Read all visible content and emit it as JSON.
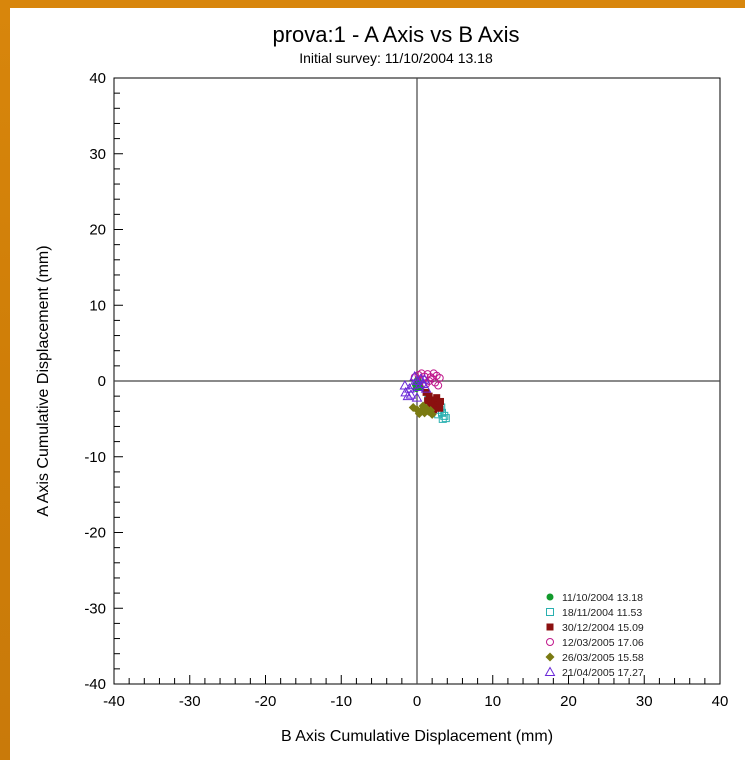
{
  "chart_data": {
    "type": "scatter",
    "title": "prova:1 - A Axis vs B Axis",
    "subtitle": "Initial survey: 11/10/2004 13.18",
    "xlabel": "B Axis Cumulative Displacement (mm)",
    "ylabel": "A Axis Cumulative Displacement (mm)",
    "xlim": [
      -40,
      40
    ],
    "ylim": [
      -40,
      40
    ],
    "xticks": [
      "-40",
      "-30",
      "-20",
      "-10",
      "0",
      "10",
      "20",
      "30",
      "40"
    ],
    "yticks": [
      "40",
      "30",
      "20",
      "10",
      "0",
      "-10",
      "-20",
      "-30",
      "-40"
    ],
    "grid": false,
    "zero_lines": true,
    "legend_position": "bottom-right",
    "series": [
      {
        "name": "11/10/2004 13.18",
        "marker": "circle-filled",
        "color": "#119a2c",
        "x": [
          0,
          0.3,
          -0.2,
          0.1,
          0.4,
          -0.1
        ],
        "y": [
          0,
          -0.3,
          -0.5,
          0.2,
          -0.8,
          -1.0
        ]
      },
      {
        "name": "18/11/2004 11.53",
        "marker": "square-open",
        "color": "#2ab0b0",
        "x": [
          1.5,
          2.0,
          2.5,
          3.0,
          3.3,
          3.6,
          2.8,
          3.2,
          2.2,
          3.8,
          1.8,
          3.4
        ],
        "y": [
          -2.5,
          -3.0,
          -3.5,
          -3.8,
          -4.2,
          -4.6,
          -4.4,
          -3.5,
          -2.8,
          -4.9,
          -3.2,
          -5.0
        ]
      },
      {
        "name": "30/12/2004 15.09",
        "marker": "square-filled",
        "color": "#8b1010",
        "x": [
          1.2,
          1.6,
          2.0,
          2.4,
          2.8,
          3.0,
          2.2,
          1.8,
          2.6,
          1.4,
          2.0,
          3.1
        ],
        "y": [
          -1.5,
          -2.0,
          -2.5,
          -2.8,
          -3.2,
          -3.6,
          -3.8,
          -3.0,
          -2.2,
          -2.6,
          -3.4,
          -2.7
        ]
      },
      {
        "name": "12/03/2005 17.06",
        "marker": "circle-open",
        "color": "#c0188c",
        "x": [
          0.2,
          0.6,
          1.0,
          1.4,
          1.8,
          2.2,
          2.6,
          3.0,
          0.8,
          1.6,
          2.4,
          1.2,
          2.0,
          -0.3,
          2.8
        ],
        "y": [
          0.8,
          1.0,
          0.6,
          0.9,
          0.5,
          1.0,
          0.7,
          0.4,
          0.2,
          0.0,
          -0.2,
          -0.4,
          0.3,
          0.5,
          -0.6
        ]
      },
      {
        "name": "26/03/2005 15.58",
        "marker": "diamond-filled",
        "color": "#7a7a12",
        "x": [
          -0.5,
          0.0,
          0.5,
          1.0,
          1.5,
          2.0,
          1.2,
          0.3,
          0.8,
          1.8
        ],
        "y": [
          -3.5,
          -3.8,
          -4.0,
          -4.2,
          -4.0,
          -4.4,
          -3.6,
          -4.3,
          -3.3,
          -3.9
        ]
      },
      {
        "name": "21/04/2005 17.27",
        "marker": "triangle-open",
        "color": "#6a28d8",
        "x": [
          -1.5,
          -1.0,
          -0.5,
          0.0,
          0.5,
          1.0,
          -1.2,
          -0.8,
          0.2,
          0.8,
          -0.3,
          1.2,
          -1.6,
          0.0
        ],
        "y": [
          -1.5,
          -1.0,
          -0.5,
          0.0,
          0.3,
          0.2,
          -2.0,
          -1.8,
          -0.8,
          -0.4,
          0.6,
          -1.0,
          -0.6,
          -2.2
        ]
      }
    ]
  }
}
